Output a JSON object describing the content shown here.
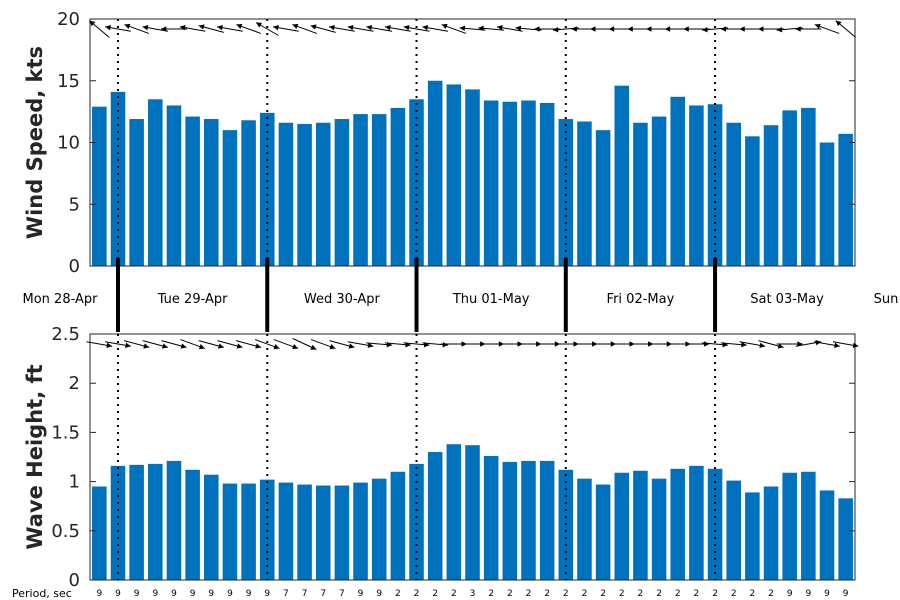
{
  "chart_data": [
    {
      "type": "bar",
      "ylabel": "Wind Speed, kts",
      "ylim": [
        0,
        20
      ],
      "yticks": [
        "0",
        "5",
        "10",
        "15",
        "20"
      ],
      "color": "#0072BD",
      "values": [
        12.9,
        14.1,
        11.9,
        13.5,
        13.0,
        12.1,
        11.9,
        11.0,
        11.8,
        12.4,
        11.6,
        11.5,
        11.6,
        11.9,
        12.3,
        12.3,
        12.8,
        13.5,
        15.0,
        14.7,
        14.3,
        13.4,
        13.3,
        13.4,
        13.2,
        11.9,
        11.7,
        11.0,
        14.6,
        11.6,
        12.1,
        13.7,
        13.0,
        13.1,
        11.6,
        10.5,
        11.4,
        12.6,
        12.8,
        10.0,
        10.7
      ],
      "arrows_dir": [
        220,
        190,
        200,
        190,
        180,
        190,
        195,
        190,
        200,
        210,
        190,
        200,
        195,
        190,
        190,
        190,
        190,
        190,
        190,
        200,
        185,
        185,
        190,
        185,
        180,
        175,
        180,
        180,
        180,
        180,
        180,
        180,
        180,
        175,
        180,
        180,
        180,
        175,
        180,
        200,
        220
      ]
    },
    {
      "type": "bar",
      "ylabel": "Wave Height, ft",
      "ylim": [
        0,
        2.5
      ],
      "yticks": [
        "0",
        "0.5",
        "1",
        "1.5",
        "2",
        "2.5"
      ],
      "color": "#0072BD",
      "values": [
        0.95,
        1.16,
        1.17,
        1.18,
        1.21,
        1.12,
        1.07,
        0.98,
        0.98,
        1.02,
        0.99,
        0.97,
        0.96,
        0.96,
        0.99,
        1.03,
        1.1,
        1.18,
        1.3,
        1.38,
        1.37,
        1.26,
        1.2,
        1.21,
        1.21,
        1.12,
        1.03,
        0.97,
        1.09,
        1.11,
        1.03,
        1.13,
        1.16,
        1.13,
        1.01,
        0.89,
        0.95,
        1.09,
        1.1,
        0.91,
        0.83
      ],
      "arrows_dir": [
        10,
        10,
        15,
        15,
        15,
        20,
        15,
        15,
        15,
        20,
        20,
        25,
        20,
        15,
        10,
        5,
        5,
        5,
        5,
        0,
        0,
        0,
        0,
        0,
        0,
        0,
        0,
        0,
        0,
        0,
        0,
        0,
        0,
        5,
        5,
        10,
        15,
        0,
        -10,
        10,
        10
      ],
      "period_title": "Period, sec",
      "periods": [
        "9",
        "9",
        "9",
        "9",
        "9",
        "9",
        "9",
        "9",
        "9",
        "9",
        "7",
        "7",
        "7",
        "7",
        "9",
        "9",
        "2",
        "2",
        "2",
        "2",
        "3",
        "2",
        "2",
        "2",
        "2",
        "2",
        "2",
        "2",
        "2",
        "2",
        "2",
        "2",
        "2",
        "2",
        "2",
        "2",
        "2",
        "9",
        "9",
        "9",
        "9"
      ]
    }
  ],
  "days": [
    "Mon 28-Apr",
    "Tue 29-Apr",
    "Wed 30-Apr",
    "Thu 01-May",
    "Fri 02-May",
    "Sat 03-May",
    "Sun"
  ],
  "day_boundaries": [
    1,
    9,
    17,
    25,
    33
  ]
}
